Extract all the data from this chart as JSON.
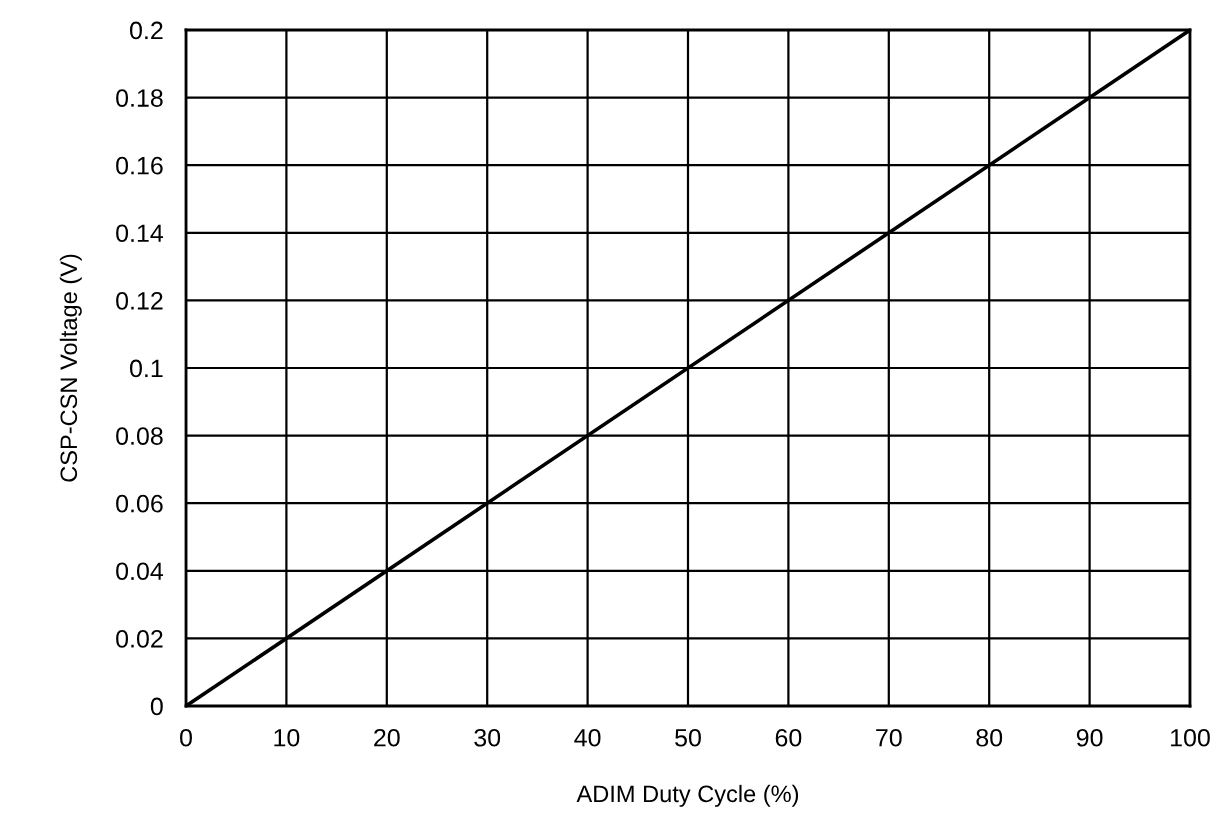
{
  "chart_data": {
    "type": "line",
    "xlabel": "ADIM Duty Cycle (%)",
    "ylabel": "CSP-CSN Voltage (V)",
    "x": [
      0,
      100
    ],
    "series": [
      {
        "color": "#000000",
        "values": [
          0,
          0.2
        ]
      }
    ],
    "xlim": [
      0,
      100
    ],
    "ylim": [
      0,
      0.2
    ],
    "xticks": [
      0,
      10,
      20,
      30,
      40,
      50,
      60,
      70,
      80,
      90,
      100
    ],
    "yticks": [
      0,
      0.02,
      0.04,
      0.06,
      0.08,
      0.1,
      0.12,
      0.14,
      0.16,
      0.18,
      0.2
    ],
    "grid": true,
    "marker": "none",
    "line_style": "solid"
  }
}
